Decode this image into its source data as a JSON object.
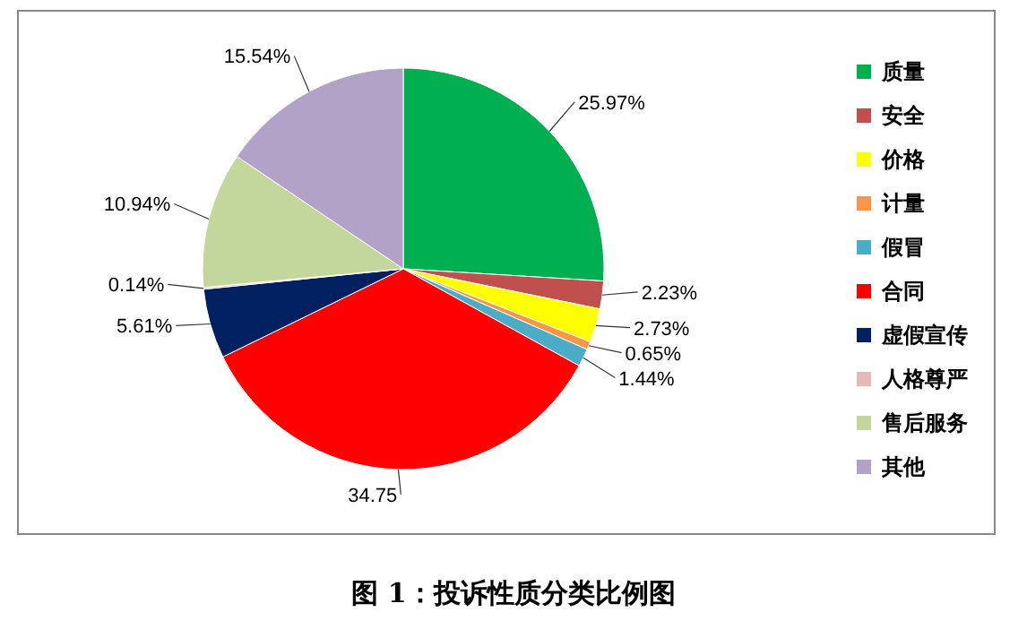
{
  "chart_data": {
    "type": "pie",
    "title": "图 1：投诉性质分类比例图",
    "categories": [
      "质量",
      "安全",
      "价格",
      "计量",
      "假冒",
      "合同",
      "虚假宣传",
      "人格尊严",
      "售后服务",
      "其他"
    ],
    "values": [
      25.97,
      2.23,
      2.73,
      0.65,
      1.44,
      34.75,
      5.61,
      0.14,
      10.94,
      15.54
    ],
    "value_labels": [
      "25.97%",
      "2.23%",
      "2.73%",
      "0.65%",
      "1.44%",
      "34.75",
      "5.61%",
      "0.14%",
      "10.94%",
      "15.54%"
    ],
    "colors": [
      "#00b050",
      "#c0504d",
      "#ffff00",
      "#f79646",
      "#4bacc6",
      "#ff0000",
      "#002060",
      "#e6b9b8",
      "#c3d69b",
      "#b3a2c7"
    ],
    "legend": "right"
  }
}
